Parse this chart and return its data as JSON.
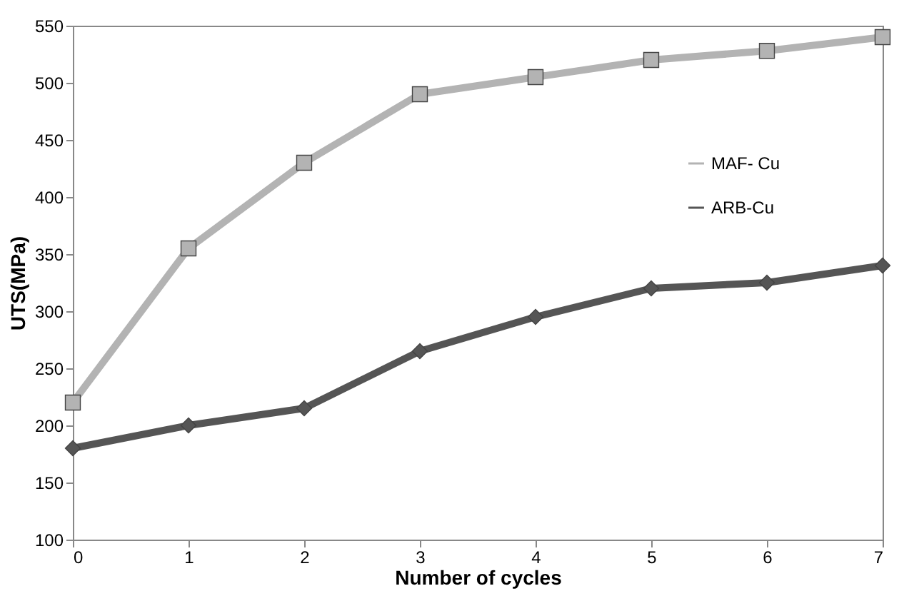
{
  "chart_data": {
    "type": "line",
    "xlabel": "Number of cycles",
    "ylabel": "UTS(MPa)",
    "x": [
      0,
      1,
      2,
      3,
      4,
      5,
      6,
      7
    ],
    "series": [
      {
        "name": "MAF- Cu",
        "color": "#b3b3b3",
        "marker": "square",
        "values": [
          220,
          355,
          430,
          490,
          505,
          520,
          528,
          540
        ]
      },
      {
        "name": "ARB-Cu",
        "color": "#555555",
        "marker": "diamond",
        "values": [
          180,
          200,
          215,
          265,
          295,
          320,
          325,
          340
        ]
      }
    ],
    "xlim": [
      0,
      7
    ],
    "xticks": [
      0,
      1,
      2,
      3,
      4,
      5,
      6,
      7
    ],
    "ylim": [
      100,
      550
    ],
    "yticks": [
      100,
      150,
      200,
      250,
      300,
      350,
      400,
      450,
      500,
      550
    ],
    "grid": false,
    "legend": "right",
    "line_style": "solid"
  }
}
